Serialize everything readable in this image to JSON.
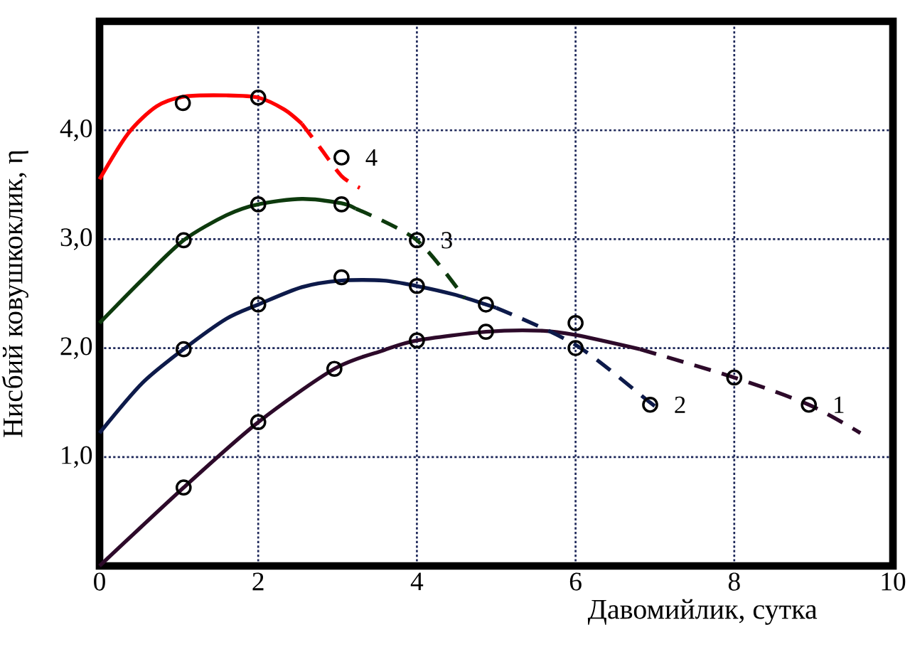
{
  "chart_data": {
    "type": "line",
    "xlabel": "Давомийлик, сутка",
    "ylabel": "Нисбий ковушкоклик, η",
    "xlim": [
      0,
      10
    ],
    "ylim": [
      0,
      5
    ],
    "xticks": [
      0,
      2,
      4,
      6,
      8,
      10
    ],
    "yticks": [
      {
        "value": 1,
        "label": "1,0"
      },
      {
        "value": 2,
        "label": "2,0"
      },
      {
        "value": 3,
        "label": "3,0"
      },
      {
        "value": 4,
        "label": "4,0"
      }
    ],
    "grid": true,
    "series": [
      {
        "type": "line",
        "color": "#2d0a2a",
        "line_style": "solid",
        "x": [
          0,
          1.06,
          2,
          2.96,
          3.58,
          4,
          4.87,
          5.56,
          6,
          6.81
        ],
        "values": [
          0,
          0.72,
          1.32,
          1.81,
          1.98,
          2.07,
          2.15,
          2.16,
          2.12,
          1.99
        ]
      },
      {
        "type": "line",
        "color": "#2d0a2a",
        "line_style": "dashed",
        "x": [
          6.81,
          8,
          8.94,
          9.59
        ],
        "values": [
          1.99,
          1.73,
          1.48,
          1.22
        ]
      },
      {
        "type": "scatter",
        "name": "1",
        "color": "#000000",
        "x": [
          1.06,
          2,
          2.96,
          4,
          4.87,
          6,
          8,
          8.94
        ],
        "values": [
          0.72,
          1.32,
          1.81,
          2.07,
          2.15,
          2.23,
          1.73,
          1.48
        ]
      },
      {
        "type": "line",
        "color": "#0d1a4a",
        "line_style": "solid",
        "x": [
          0,
          0.54,
          1.06,
          1.6,
          2,
          2.55,
          3.05,
          3.58,
          4,
          4.48,
          4.87,
          5.0
        ],
        "values": [
          1.22,
          1.68,
          1.99,
          2.27,
          2.4,
          2.56,
          2.62,
          2.62,
          2.57,
          2.49,
          2.4,
          2.37
        ]
      },
      {
        "type": "line",
        "color": "#0d1a4a",
        "line_style": "dashed",
        "x": [
          5.0,
          6,
          6.94,
          7.08
        ],
        "values": [
          2.37,
          2.03,
          1.5,
          1.42
        ]
      },
      {
        "type": "scatter",
        "name": "2",
        "color": "#000000",
        "x": [
          1.06,
          2,
          3.05,
          4,
          4.87,
          6,
          6.94
        ],
        "values": [
          1.99,
          2.4,
          2.65,
          2.57,
          2.4,
          2.0,
          1.48
        ]
      },
      {
        "type": "line",
        "color": "#0d3a0d",
        "line_style": "solid",
        "x": [
          0,
          0.54,
          1.06,
          1.6,
          2,
          2.55,
          3.05,
          3.23
        ],
        "values": [
          2.23,
          2.63,
          2.99,
          3.22,
          3.32,
          3.37,
          3.33,
          3.28
        ]
      },
      {
        "type": "line",
        "color": "#0d3a0d",
        "line_style": "dashed",
        "x": [
          3.23,
          4,
          4.6
        ],
        "values": [
          3.28,
          2.99,
          2.46
        ]
      },
      {
        "type": "scatter",
        "name": "3",
        "color": "#000000",
        "x": [
          1.06,
          2,
          3.05,
          4
        ],
        "values": [
          2.99,
          3.32,
          3.32,
          2.99
        ]
      },
      {
        "type": "line",
        "color": "#ff0000",
        "line_style": "solid",
        "x": [
          0,
          0.36,
          0.72,
          1.08,
          1.6,
          2,
          2.33,
          2.55
        ],
        "values": [
          3.55,
          3.97,
          4.22,
          4.31,
          4.32,
          4.3,
          4.19,
          4.06
        ]
      },
      {
        "type": "line",
        "color": "#ff0000",
        "line_style": "dashed",
        "x": [
          2.55,
          2.78,
          3.05,
          3.28
        ],
        "values": [
          4.06,
          3.84,
          3.58,
          3.47
        ]
      },
      {
        "type": "scatter",
        "name": "4",
        "color": "#000000",
        "x": [
          1.05,
          2,
          3.05
        ],
        "values": [
          4.25,
          4.3,
          3.75
        ]
      }
    ]
  }
}
